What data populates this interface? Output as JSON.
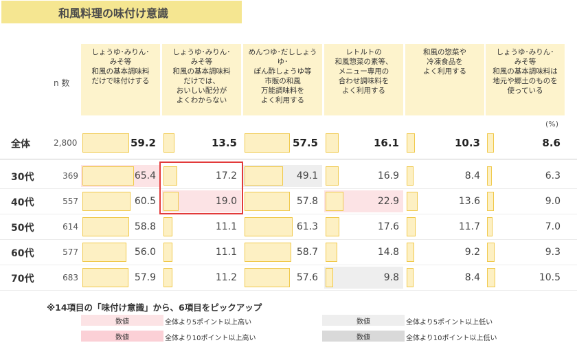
{
  "title": "和風料理の味付け意識",
  "n_label": "n 数",
  "unit_label": "(%)",
  "note": "※14項目の「味付け意識」から、6項目をピックアップ",
  "legend": [
    {
      "box": "数値",
      "text": "全体より5ポイント以上高い",
      "style": "hi5"
    },
    {
      "box": "数値",
      "text": "全体より10ポイント以上高い",
      "style": "hi10"
    },
    {
      "box": "数値",
      "text": "全体より5ポイント以上低い",
      "style": "lo5"
    },
    {
      "box": "数値",
      "text": "全体より10ポイント以上低い",
      "style": "lo10"
    }
  ],
  "colors": {
    "bar_fill": "#fdf0c3",
    "bar_border": "#f0c94c",
    "hi5": "#fce3e5",
    "hi10": "#fbd0d6",
    "lo5": "#eeeeee",
    "lo10": "#d9d9d9",
    "highlight_box": "#e23a3a"
  },
  "chart_data": {
    "type": "table",
    "title": "和風料理の味付け意識",
    "columns": [
      "しょうゆ･みりん･\nみそ等\n和風の基本調味料\nだけで味付けする",
      "しょうゆ･みりん･\nみそ等\n和風の基本調味料\nだけでは、\nおいしい配分が\nよくわからない",
      "めんつゆ･だししょうゆ･\nぽん酢しょうゆ等\n市販の和風\n万能調味料を\nよく利用する",
      "レトルトの\n和風惣菜の素等、\nメニュー専用の\n合わせ調味料を\nよく利用する",
      "和風の惣菜や\n冷凍食品を\nよく利用する",
      "しょうゆ･みりん･\nみそ等\n和風の基本調味料は\n地元や郷土のものを\n使っている"
    ],
    "rows": [
      {
        "label": "全体",
        "n": "2,800",
        "values": [
          59.2,
          13.5,
          57.5,
          16.1,
          10.3,
          8.6
        ],
        "marks": [
          "",
          "",
          "",
          "",
          "",
          ""
        ]
      },
      {
        "label": "30代",
        "n": "369",
        "values": [
          65.4,
          17.2,
          49.1,
          16.9,
          8.4,
          6.3
        ],
        "marks": [
          "hi5",
          "",
          "lo5",
          "",
          "",
          ""
        ]
      },
      {
        "label": "40代",
        "n": "557",
        "values": [
          60.5,
          19.0,
          57.8,
          22.9,
          13.6,
          9.0
        ],
        "marks": [
          "",
          "hi5",
          "",
          "hi5",
          "",
          ""
        ]
      },
      {
        "label": "50代",
        "n": "614",
        "values": [
          58.8,
          11.1,
          61.3,
          17.6,
          11.7,
          7.0
        ],
        "marks": [
          "",
          "",
          "",
          "",
          "",
          ""
        ]
      },
      {
        "label": "60代",
        "n": "577",
        "values": [
          56.0,
          11.1,
          58.7,
          14.8,
          9.2,
          9.3
        ],
        "marks": [
          "",
          "",
          "",
          "",
          "",
          ""
        ]
      },
      {
        "label": "70代",
        "n": "683",
        "values": [
          57.9,
          11.2,
          57.6,
          9.8,
          8.4,
          10.5
        ],
        "marks": [
          "",
          "",
          "",
          "lo5",
          "",
          ""
        ]
      }
    ],
    "highlight": {
      "columns": [
        1
      ],
      "rows": [
        "30代",
        "40代"
      ]
    }
  }
}
